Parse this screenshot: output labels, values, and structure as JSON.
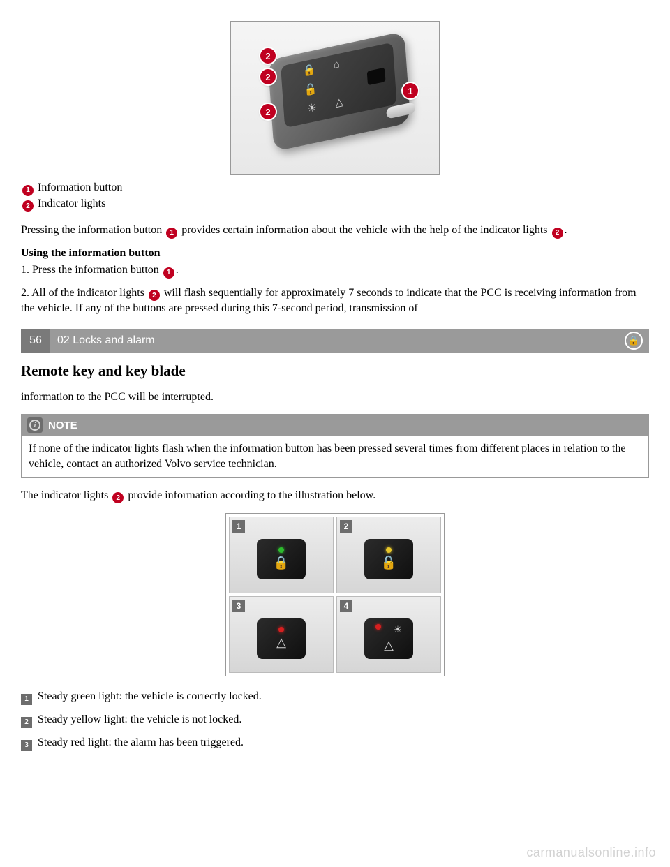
{
  "colors": {
    "accent_red": "#c00020",
    "bar_dark": "#7a7a7a",
    "bar_light": "#9a9a9a",
    "square_gray": "#6d6d6d"
  },
  "main_image": {
    "callouts": {
      "info_button": "1",
      "indicator_a": "2",
      "indicator_b": "2",
      "indicator_c": "2"
    }
  },
  "legend": {
    "item1_num": "1",
    "item1_text": "Information button",
    "item2_num": "2",
    "item2_text": "Indicator lights"
  },
  "para1_a": "Pressing the information button ",
  "para1_num": "1",
  "para1_b": " provides certain information about the vehicle with the help of the indicator lights ",
  "para1_num2": "2",
  "para1_c": ".",
  "subhead1": "Using the information button",
  "step1_a": "1. Press the information button ",
  "step1_num": "1",
  "step1_b": ".",
  "step2_a": "2. All of the indicator lights ",
  "step2_num": "2",
  "step2_b": " will flash sequentially for approximately 7 seconds to indicate that the PCC is receiving information from the vehicle. If any of the buttons are pressed during this 7-second period, transmission of",
  "section_bar": {
    "page": "56",
    "title": "02 Locks and alarm"
  },
  "h2": "Remote key and key blade",
  "cont_text": "information to the PCC will be interrupted.",
  "note": {
    "label": "NOTE",
    "icon_letter": "i",
    "body": "If none of the indicator lights flash when the information button has been pressed several times from different places in relation to the vehicle, contact an authorized Volvo service technician."
  },
  "para2_a": "The indicator lights ",
  "para2_num": "2",
  "para2_b": " provide information according to the illustration below.",
  "grid": {
    "c1": "1",
    "c2": "2",
    "c3": "3",
    "c4": "4"
  },
  "list": {
    "n1": "1",
    "t1": "Steady green light: the vehicle is correctly locked.",
    "n2": "2",
    "t2": "Steady yellow light: the vehicle is not locked.",
    "n3": "3",
    "t3": "Steady red light: the alarm has been triggered."
  },
  "watermark": "carmanualsonline.info"
}
